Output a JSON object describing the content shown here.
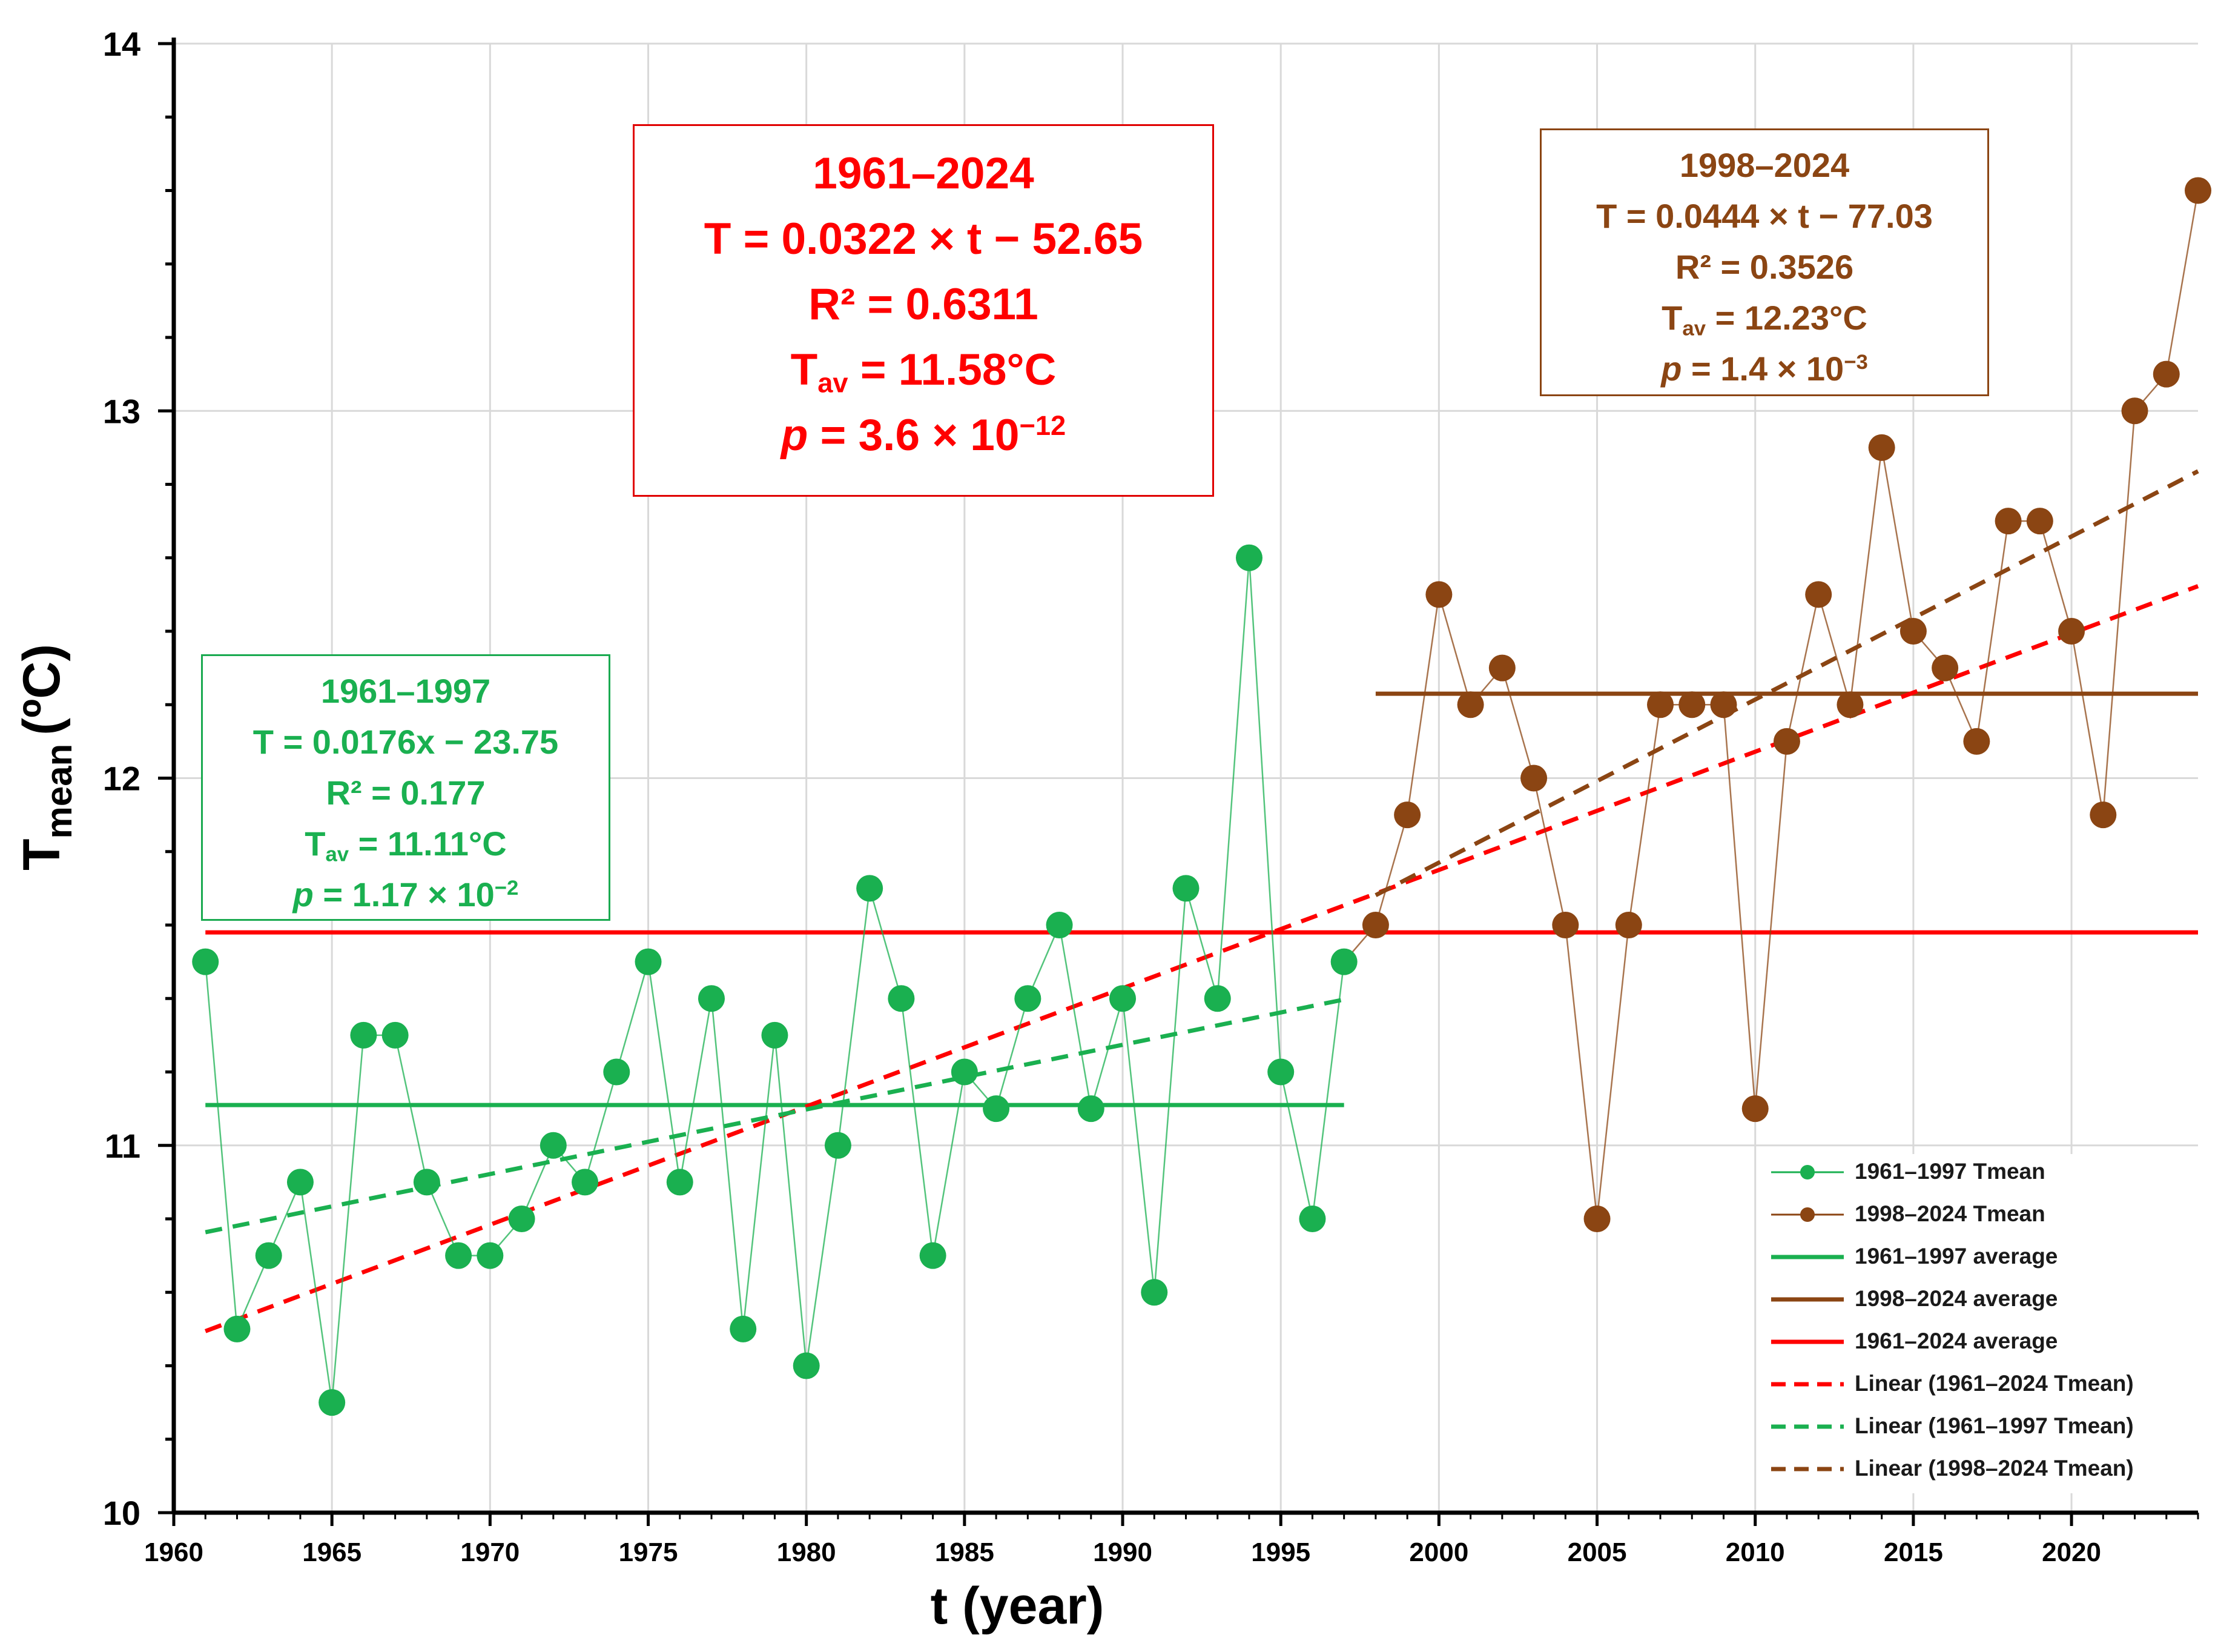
{
  "chart_data": {
    "type": "scatter",
    "xlabel": "t (year)",
    "ylabel_main": "T",
    "ylabel_sub": "mean",
    "ylabel_unit": "(ºC)",
    "xlim": [
      1960,
      2024
    ],
    "ylim": [
      10,
      14
    ],
    "xticks": [
      1960,
      1965,
      1970,
      1975,
      1980,
      1985,
      1990,
      1995,
      2000,
      2005,
      2010,
      2015,
      2020
    ],
    "yticks": [
      10,
      11,
      12,
      13,
      14
    ],
    "grid": true,
    "colors": {
      "green": "#1ab050",
      "brown": "#8b4513",
      "red": "#ff0000",
      "dark_red": "#e00000"
    },
    "series": [
      {
        "name": "1961–1997 Tmean",
        "color": "#1ab050",
        "x": [
          1961,
          1962,
          1963,
          1964,
          1965,
          1966,
          1967,
          1968,
          1969,
          1970,
          1971,
          1972,
          1973,
          1974,
          1975,
          1976,
          1977,
          1978,
          1979,
          1980,
          1981,
          1982,
          1983,
          1984,
          1985,
          1986,
          1987,
          1988,
          1989,
          1990,
          1991,
          1992,
          1993,
          1994,
          1995,
          1996,
          1997
        ],
        "y": [
          11.5,
          10.5,
          10.7,
          10.9,
          10.3,
          11.3,
          11.3,
          10.9,
          10.7,
          10.7,
          10.8,
          11.0,
          10.9,
          11.2,
          11.5,
          10.9,
          11.4,
          10.5,
          11.3,
          10.4,
          11.0,
          11.7,
          11.4,
          10.7,
          11.2,
          11.1,
          11.4,
          11.6,
          11.1,
          11.4,
          10.6,
          11.7,
          11.4,
          12.6,
          11.2,
          10.8,
          11.5
        ]
      },
      {
        "name": "1998–2024 Tmean",
        "color": "#8b4513",
        "x": [
          1998,
          1999,
          2000,
          2001,
          2002,
          2003,
          2004,
          2005,
          2006,
          2007,
          2008,
          2009,
          2010,
          2011,
          2012,
          2013,
          2014,
          2015,
          2016,
          2017,
          2018,
          2019,
          2020,
          2021,
          2022,
          2023,
          2024
        ],
        "y": [
          11.6,
          11.9,
          12.5,
          12.2,
          12.3,
          12.0,
          11.6,
          10.8,
          11.6,
          12.2,
          12.2,
          12.2,
          11.1,
          12.1,
          12.5,
          12.2,
          12.9,
          12.4,
          12.3,
          12.1,
          12.7,
          12.7,
          12.4,
          11.9,
          13.0,
          13.1,
          13.6
        ]
      }
    ],
    "averages": [
      {
        "name": "1961–1997 average",
        "value": 11.11,
        "from": 1961,
        "to": 1997,
        "color": "#1ab050"
      },
      {
        "name": "1998–2024 average",
        "value": 12.23,
        "from": 1998,
        "to": 2024,
        "color": "#8b4513"
      },
      {
        "name": "1961–2024 average",
        "value": 11.58,
        "from": 1961,
        "to": 2024,
        "color": "#ff0000"
      }
    ],
    "trendlines": [
      {
        "name": "Linear (1961–2024 Tmean)",
        "slope": 0.0322,
        "intercept": -52.65,
        "from": 1961,
        "to": 2024,
        "color": "#ff0000"
      },
      {
        "name": "Linear (1961–1997 Tmean)",
        "slope": 0.0176,
        "intercept": -23.75,
        "from": 1961,
        "to": 1997,
        "color": "#1ab050"
      },
      {
        "name": "Linear (1998–2024 Tmean)",
        "slope": 0.0444,
        "intercept": -77.03,
        "from": 1998,
        "to": 2024,
        "color": "#8b4513"
      }
    ],
    "annotations": {
      "full": {
        "period": "1961–2024",
        "equation": "T = 0.0322 × t − 52.65",
        "r2": "R² = 0.6311",
        "tav_label": "T",
        "tav_sub": "av",
        "tav_value": " = 11.58°C",
        "p_label": "p",
        "p_text": " = 3.6 × 10",
        "p_exp": "−12"
      },
      "early": {
        "period": "1961–1997",
        "equation": "T = 0.0176x − 23.75",
        "r2": "R² = 0.177",
        "tav_label": "T",
        "tav_sub": "av",
        "tav_value": " = 11.11°C",
        "p_label": "p",
        "p_text": " = 1.17 × 10",
        "p_exp": "−2"
      },
      "late": {
        "period": "1998–2024",
        "equation": "T = 0.0444 × t − 77.03",
        "r2": "R² = 0.3526",
        "tav_label": "T",
        "tav_sub": "av",
        "tav_value": " = 12.23°C",
        "p_label": "p",
        "p_text": " = 1.4 × 10",
        "p_exp": "−3"
      }
    },
    "legend": {
      "placement": "bottom-right",
      "entries": [
        {
          "label": "1961–1997 Tmean",
          "kind": "marker-line",
          "color": "#1ab050"
        },
        {
          "label": "1998–2024 Tmean",
          "kind": "marker-line",
          "color": "#8b4513"
        },
        {
          "label": "1961–1997 average",
          "kind": "solid",
          "color": "#1ab050"
        },
        {
          "label": "1998–2024 average",
          "kind": "solid",
          "color": "#8b4513"
        },
        {
          "label": "1961–2024 average",
          "kind": "solid",
          "color": "#ff0000"
        },
        {
          "label": "Linear (1961–2024 Tmean)",
          "kind": "dashed",
          "color": "#ff0000"
        },
        {
          "label": "Linear (1961–1997 Tmean)",
          "kind": "dashed",
          "color": "#1ab050"
        },
        {
          "label": "Linear (1998–2024 Tmean)",
          "kind": "dashed",
          "color": "#8b4513"
        }
      ]
    }
  }
}
